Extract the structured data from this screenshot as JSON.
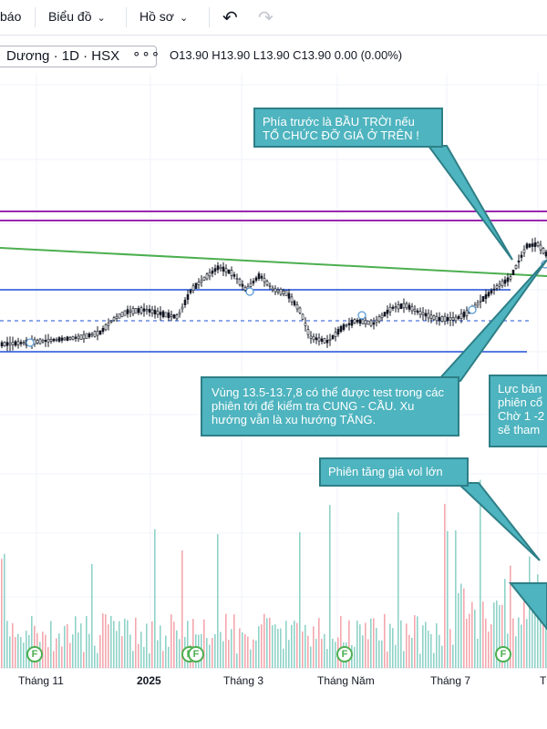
{
  "toolbar": {
    "alerts_label": "báo",
    "chart_label": "Biểu đồ",
    "profile_label": "Hồ sơ",
    "undo_icon": "undo-icon",
    "redo_icon": "redo-icon"
  },
  "legend": {
    "symbol": "Dương · 1D · HSX",
    "more_icon": "more-icon",
    "ohlc": "O13.90  H13.90  L13.90  C13.90  0.00 (0.00%)"
  },
  "annotations": {
    "sky": "Phía trước là BẦU TRỜI nếu TỔ CHỨC ĐỠ GIÁ Ở TRÊN !",
    "zone": "Vùng 13.5-13.7,8 có thể được test trong các phiên tới để kiểm tra CUNG - CẦU. Xu hướng vẫn là xu hướng TĂNG.",
    "sell": "Lực bán phiên cổ Chờ 1 -2 sẽ tham",
    "vol": "Phiên tăng giá vol lớn"
  },
  "time_axis": {
    "labels": [
      "Tháng 11",
      "2025",
      "Tháng 3",
      "Tháng Năm",
      "Tháng 7",
      "T"
    ]
  },
  "markers": [
    "F",
    "F",
    "F",
    "F",
    "F"
  ],
  "colors": {
    "purple_line": "#9c27b0",
    "green_line": "#4caf50",
    "blue_line": "#1e4fd6",
    "callout": "#4eb4bf",
    "vol_up": "#8fd3c8",
    "vol_down": "#f4a7ae"
  }
}
